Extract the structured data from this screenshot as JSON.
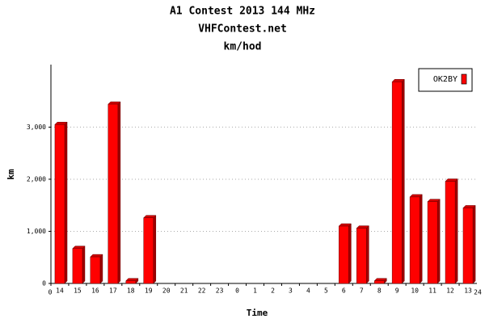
{
  "chart_data": {
    "type": "bar",
    "title": "A1 Contest 2013 144 MHz",
    "subtitle": "VHFContest.net",
    "unit_title": "km/hod",
    "x_label": "Time",
    "y_label": "km",
    "axis_end_labels": [
      "0",
      "24"
    ],
    "categories": [
      "14",
      "15",
      "16",
      "17",
      "18",
      "19",
      "20",
      "21",
      "22",
      "23",
      "0",
      "1",
      "2",
      "3",
      "4",
      "5",
      "6",
      "7",
      "8",
      "9",
      "10",
      "11",
      "12",
      "13"
    ],
    "series": [
      {
        "name": "OK2BY",
        "color": "#ff0000",
        "values": [
          3050,
          670,
          510,
          3440,
          50,
          1260,
          0,
          0,
          0,
          0,
          0,
          0,
          0,
          0,
          0,
          0,
          1100,
          1060,
          50,
          3870,
          1660,
          1570,
          1960,
          1450
        ]
      }
    ],
    "ylim": [
      0,
      4200
    ],
    "yticks": [
      0,
      {
        "value": 1000,
        "label": "1,000"
      },
      {
        "value": 2000,
        "label": "2,000"
      },
      {
        "value": 3000,
        "label": "3,000"
      }
    ],
    "grid": true,
    "legend": "top-right"
  }
}
